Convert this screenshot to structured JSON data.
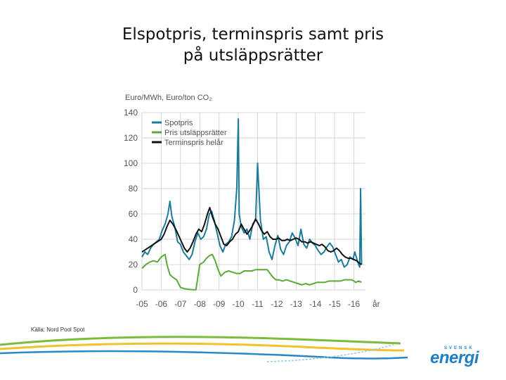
{
  "slide": {
    "title_line1": "Elspotpris, terminspris samt pris",
    "title_line2": "på utsläppsrätter",
    "source": "Källa: Nord Pool Spot"
  },
  "logo": {
    "top_text": "SVENSK",
    "main_text": "energi",
    "color": "#1f7fc3"
  },
  "colors": {
    "spot": "#1b7c98",
    "emission": "#5ea837",
    "forward": "#111111",
    "grid": "#d6d6d6",
    "axis_text": "#555555",
    "footer_green": "#7dbb3c",
    "footer_yellow": "#f2c12e",
    "footer_blue": "#2b87c6"
  },
  "chart_data": {
    "type": "line",
    "ylabel": "Euro/MWh, Euro/ton CO₂",
    "xlabel": "år",
    "ylim": [
      0,
      140
    ],
    "xlim": [
      2005,
      2016.6
    ],
    "yticks": [
      0,
      20,
      40,
      60,
      80,
      100,
      120,
      140
    ],
    "xticks": [
      {
        "value": 2005,
        "label": "-05"
      },
      {
        "value": 2006,
        "label": "-06"
      },
      {
        "value": 2007,
        "label": "-07"
      },
      {
        "value": 2008,
        "label": "-08"
      },
      {
        "value": 2009,
        "label": "-09"
      },
      {
        "value": 2010,
        "label": "-10"
      },
      {
        "value": 2011,
        "label": "-11"
      },
      {
        "value": 2012,
        "label": "-12"
      },
      {
        "value": 2013,
        "label": "-13"
      },
      {
        "value": 2014,
        "label": "-14"
      },
      {
        "value": 2015,
        "label": "-15"
      },
      {
        "value": 2016,
        "label": "-16"
      }
    ],
    "grid": true,
    "legend_position": "top-left",
    "series": [
      {
        "name": "Spotpris",
        "color": "#1b7c98",
        "x": [
          2005.0,
          2005.15,
          2005.3,
          2005.45,
          2005.6,
          2005.75,
          2005.9,
          2006.05,
          2006.2,
          2006.35,
          2006.45,
          2006.55,
          2006.7,
          2006.85,
          2007.0,
          2007.15,
          2007.3,
          2007.45,
          2007.6,
          2007.75,
          2007.9,
          2008.05,
          2008.2,
          2008.35,
          2008.5,
          2008.62,
          2008.75,
          2008.9,
          2009.05,
          2009.2,
          2009.35,
          2009.5,
          2009.65,
          2009.8,
          2009.92,
          2010.0,
          2010.05,
          2010.15,
          2010.3,
          2010.45,
          2010.6,
          2010.75,
          2010.9,
          2011.0,
          2011.15,
          2011.3,
          2011.45,
          2011.6,
          2011.75,
          2011.9,
          2012.05,
          2012.2,
          2012.35,
          2012.5,
          2012.65,
          2012.8,
          2012.95,
          2013.1,
          2013.25,
          2013.4,
          2013.55,
          2013.7,
          2013.85,
          2014.0,
          2014.15,
          2014.3,
          2014.45,
          2014.6,
          2014.75,
          2014.9,
          2015.05,
          2015.2,
          2015.35,
          2015.5,
          2015.65,
          2015.8,
          2015.95,
          2016.05,
          2016.2,
          2016.3,
          2016.35,
          2016.4
        ],
        "values": [
          26,
          30,
          28,
          33,
          36,
          38,
          40,
          47,
          52,
          60,
          70,
          58,
          50,
          38,
          36,
          30,
          27,
          24,
          28,
          38,
          45,
          40,
          42,
          48,
          60,
          62,
          55,
          45,
          35,
          30,
          36,
          38,
          42,
          55,
          80,
          135,
          60,
          50,
          45,
          48,
          40,
          52,
          55,
          100,
          55,
          40,
          42,
          30,
          24,
          35,
          43,
          32,
          28,
          35,
          38,
          45,
          41,
          35,
          48,
          36,
          33,
          40,
          37,
          35,
          31,
          28,
          30,
          34,
          37,
          34,
          28,
          22,
          24,
          18,
          20,
          26,
          24,
          30,
          22,
          18,
          80,
          20
        ]
      },
      {
        "name": "Pris utsläppsrätter",
        "color": "#5ea837",
        "x": [
          2005.0,
          2005.2,
          2005.4,
          2005.6,
          2005.8,
          2006.0,
          2006.2,
          2006.3,
          2006.45,
          2006.6,
          2006.8,
          2007.0,
          2007.2,
          2007.4,
          2007.6,
          2007.8,
          2008.0,
          2008.2,
          2008.35,
          2008.5,
          2008.65,
          2008.8,
          2008.95,
          2009.1,
          2009.3,
          2009.5,
          2009.7,
          2009.9,
          2010.1,
          2010.3,
          2010.5,
          2010.7,
          2010.9,
          2011.1,
          2011.3,
          2011.5,
          2011.65,
          2011.8,
          2011.95,
          2012.1,
          2012.3,
          2012.5,
          2012.7,
          2012.9,
          2013.1,
          2013.3,
          2013.5,
          2013.7,
          2013.9,
          2014.1,
          2014.3,
          2014.5,
          2014.7,
          2014.9,
          2015.1,
          2015.3,
          2015.5,
          2015.7,
          2015.9,
          2016.1,
          2016.25,
          2016.4
        ],
        "values": [
          17,
          20,
          22,
          23,
          22,
          26,
          28,
          20,
          12,
          10,
          8,
          2,
          1,
          0.5,
          0.2,
          0.1,
          20,
          22,
          25,
          27,
          28,
          23,
          16,
          11,
          14,
          15,
          14,
          13,
          13,
          15,
          15,
          15,
          16,
          16,
          16,
          16,
          13,
          10,
          8,
          8,
          7,
          8,
          7,
          6,
          5,
          4,
          5,
          4,
          5,
          6,
          6,
          6,
          7,
          7,
          7,
          7,
          8,
          8,
          8,
          6,
          7,
          6
        ]
      },
      {
        "name": "Terminspris helår",
        "color": "#111111",
        "x": [
          2005.0,
          2005.2,
          2005.4,
          2005.6,
          2005.8,
          2006.0,
          2006.15,
          2006.3,
          2006.45,
          2006.6,
          2006.75,
          2006.9,
          2007.05,
          2007.2,
          2007.35,
          2007.5,
          2007.65,
          2007.8,
          2007.95,
          2008.1,
          2008.25,
          2008.4,
          2008.52,
          2008.65,
          2008.8,
          2008.95,
          2009.1,
          2009.25,
          2009.4,
          2009.55,
          2009.7,
          2009.85,
          2010.0,
          2010.15,
          2010.3,
          2010.45,
          2010.6,
          2010.75,
          2010.9,
          2011.05,
          2011.2,
          2011.35,
          2011.5,
          2011.65,
          2011.8,
          2011.95,
          2012.1,
          2012.25,
          2012.4,
          2012.55,
          2012.7,
          2012.85,
          2013.0,
          2013.15,
          2013.3,
          2013.45,
          2013.6,
          2013.75,
          2013.9,
          2014.05,
          2014.2,
          2014.35,
          2014.5,
          2014.65,
          2014.8,
          2014.95,
          2015.1,
          2015.25,
          2015.4,
          2015.55,
          2015.7,
          2015.85,
          2016.0,
          2016.15,
          2016.3,
          2016.4
        ],
        "values": [
          30,
          32,
          34,
          36,
          38,
          40,
          44,
          50,
          55,
          52,
          48,
          43,
          38,
          33,
          30,
          33,
          38,
          44,
          48,
          46,
          52,
          60,
          65,
          58,
          52,
          48,
          42,
          36,
          35,
          38,
          40,
          44,
          46,
          52,
          48,
          44,
          47,
          51,
          56,
          52,
          47,
          44,
          46,
          42,
          40,
          40,
          41,
          39,
          39,
          40,
          39,
          40,
          41,
          40,
          38,
          38,
          37,
          38,
          37,
          36,
          35,
          36,
          34,
          31,
          30,
          31,
          33,
          31,
          28,
          26,
          25,
          25,
          24,
          23,
          21,
          20
        ]
      }
    ]
  }
}
